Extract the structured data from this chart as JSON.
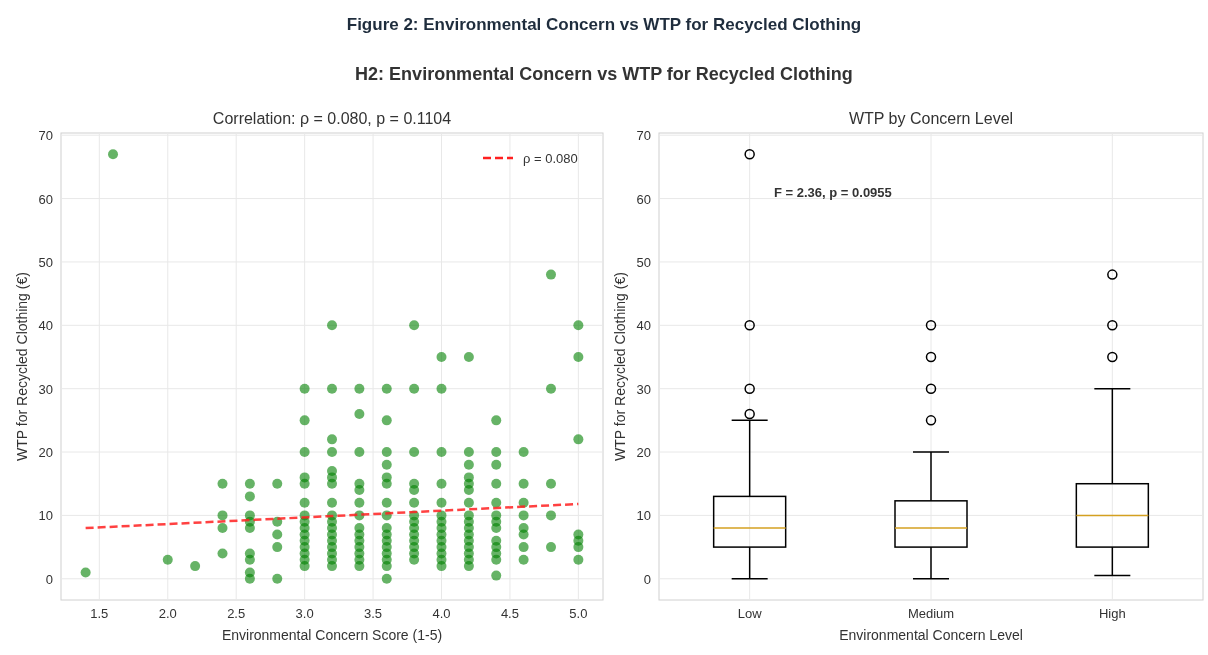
{
  "chart_data": [
    {
      "type": "scatter",
      "title": "Correlation: ρ = 0.080, p = 0.1104",
      "xlabel": "Environmental Concern Score (1-5)",
      "ylabel": "WTP for Recycled Clothing (€)",
      "annotations": [
        "Figure 2: Environmental Concern vs WTP for Recycled Clothing",
        "H2: Environmental Concern vs WTP for Recycled Clothing"
      ],
      "xlim": [
        1.22,
        5.18
      ],
      "xticks": [
        {
          "value": 1.5,
          "label": "1.5"
        },
        {
          "value": 2.0,
          "label": "2.0"
        },
        {
          "value": 2.5,
          "label": "2.5"
        },
        {
          "value": 3.0,
          "label": "3.0"
        },
        {
          "value": 3.5,
          "label": "3.5"
        },
        {
          "value": 4.0,
          "label": "4.0"
        },
        {
          "value": 4.5,
          "label": "4.5"
        },
        {
          "value": 5.0,
          "label": "5.0"
        }
      ],
      "ylim": [
        -3.35,
        70.35
      ],
      "yticks": [
        0,
        10,
        20,
        30,
        40,
        50,
        60,
        70
      ],
      "grid": true,
      "legend": "top right",
      "marker": "circle",
      "series": [
        {
          "type": "scatter",
          "color": "#008000",
          "x": [
            1.4,
            1.6,
            2.0,
            2.2,
            2.4,
            2.4,
            2.4,
            2.4,
            2.6,
            2.6,
            2.6,
            2.6,
            2.6,
            2.6,
            2.6,
            2.6,
            2.6,
            2.8,
            2.8,
            2.8,
            2.8,
            2.8,
            3.0,
            3.0,
            3.0,
            3.0,
            3.0,
            3.0,
            3.0,
            3.0,
            3.0,
            3.0,
            3.0,
            3.0,
            3.0,
            3.0,
            3.0,
            3.2,
            3.2,
            3.2,
            3.2,
            3.2,
            3.2,
            3.2,
            3.2,
            3.2,
            3.2,
            3.2,
            3.2,
            3.2,
            3.2,
            3.2,
            3.2,
            3.2,
            3.4,
            3.4,
            3.4,
            3.4,
            3.4,
            3.4,
            3.4,
            3.4,
            3.4,
            3.4,
            3.4,
            3.4,
            3.4,
            3.4,
            3.6,
            3.6,
            3.6,
            3.6,
            3.6,
            3.6,
            3.6,
            3.6,
            3.6,
            3.6,
            3.6,
            3.6,
            3.6,
            3.6,
            3.6,
            3.6,
            3.8,
            3.8,
            3.8,
            3.8,
            3.8,
            3.8,
            3.8,
            3.8,
            3.8,
            3.8,
            3.8,
            3.8,
            3.8,
            3.8,
            4.0,
            4.0,
            4.0,
            4.0,
            4.0,
            4.0,
            4.0,
            4.0,
            4.0,
            4.0,
            4.0,
            4.0,
            4.0,
            4.0,
            4.2,
            4.2,
            4.2,
            4.2,
            4.2,
            4.2,
            4.2,
            4.2,
            4.2,
            4.2,
            4.2,
            4.2,
            4.2,
            4.2,
            4.2,
            4.2,
            4.4,
            4.4,
            4.4,
            4.4,
            4.4,
            4.4,
            4.4,
            4.4,
            4.4,
            4.4,
            4.4,
            4.4,
            4.4,
            4.6,
            4.6,
            4.6,
            4.6,
            4.6,
            4.6,
            4.6,
            4.6,
            4.8,
            4.8,
            4.8,
            4.8,
            4.8,
            5.0,
            5.0,
            5.0,
            5.0,
            5.0,
            5.0,
            5.0
          ],
          "values": [
            1,
            67,
            3,
            2,
            15,
            10,
            8,
            4,
            15,
            13,
            10,
            9,
            8,
            4,
            3,
            1,
            0,
            15,
            9,
            7,
            5,
            0,
            30,
            25,
            20,
            16,
            15,
            12,
            10,
            9,
            8,
            7,
            6,
            5,
            4,
            3,
            2,
            40,
            30,
            22,
            20,
            17,
            16,
            15,
            12,
            10,
            9,
            8,
            7,
            6,
            5,
            4,
            3,
            2,
            30,
            26,
            20,
            15,
            14,
            12,
            10,
            8,
            7,
            6,
            5,
            4,
            3,
            2,
            30,
            25,
            20,
            18,
            16,
            15,
            12,
            10,
            8,
            7,
            6,
            5,
            4,
            3,
            2,
            0,
            40,
            30,
            20,
            15,
            14,
            12,
            10,
            9,
            8,
            7,
            6,
            5,
            4,
            3,
            35,
            30,
            20,
            15,
            12,
            10,
            9,
            8,
            7,
            6,
            5,
            4,
            3,
            2,
            35,
            20,
            18,
            16,
            15,
            14,
            12,
            10,
            9,
            8,
            7,
            6,
            5,
            4,
            3,
            2,
            25,
            20,
            18,
            15,
            12,
            10,
            9,
            8,
            6,
            5,
            4,
            3,
            0.5,
            20,
            15,
            12,
            10,
            8,
            7,
            5,
            3,
            48,
            30,
            15,
            10,
            5,
            40,
            35,
            22,
            7,
            6,
            5,
            3
          ]
        },
        {
          "type": "line",
          "name": "ρ = 0.080",
          "color": "#ff2020",
          "line_style": "dashed",
          "marker": "none",
          "x": [
            1.4,
            5.0
          ],
          "values": [
            8.0,
            11.8
          ]
        }
      ]
    },
    {
      "type": "box",
      "title": "WTP by Concern Level",
      "xlabel": "Environmental Concern Level",
      "ylabel": "WTP for Recycled Clothing (€)",
      "annotations": [
        "F = 2.36, p = 0.0955"
      ],
      "categories": [
        "Low",
        "Medium",
        "High"
      ],
      "ylim": [
        -3.35,
        70.35
      ],
      "yticks": [
        0,
        10,
        20,
        30,
        40,
        50,
        60,
        70
      ],
      "grid": true,
      "boxes": [
        {
          "low": 0,
          "q1": 5,
          "median": 8,
          "q3": 13,
          "high": 25,
          "outliers": [
            26,
            30,
            40,
            67
          ]
        },
        {
          "low": 0,
          "q1": 5,
          "median": 8,
          "q3": 12.3,
          "high": 20,
          "outliers": [
            25,
            30,
            35,
            40
          ]
        },
        {
          "low": 0.5,
          "q1": 5,
          "median": 10,
          "q3": 15,
          "high": 30,
          "outliers": [
            35,
            40,
            48
          ]
        }
      ]
    }
  ]
}
